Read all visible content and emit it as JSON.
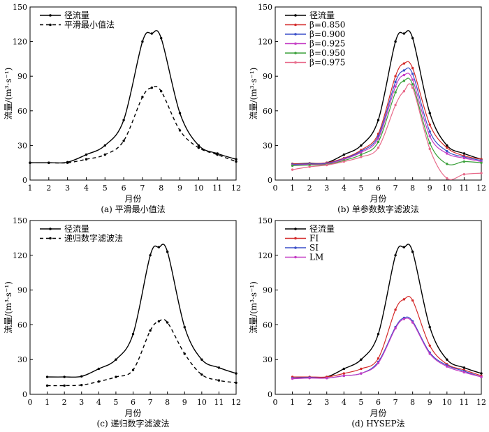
{
  "chart_data": [
    {
      "type": "line",
      "title": "",
      "caption": "(a) 平滑最小值法",
      "xlabel": "月份",
      "ylabel": "流量/(m³·s⁻¹)",
      "xlim": [
        1,
        12
      ],
      "ylim": [
        0,
        150
      ],
      "xticks": [
        1,
        2,
        3,
        4,
        5,
        6,
        7,
        8,
        9,
        10,
        11,
        12
      ],
      "yticks": [
        0,
        30,
        60,
        90,
        120,
        150
      ],
      "legend_position": "top-left",
      "grid": false,
      "series": [
        {
          "name": "径流量",
          "style": "solid",
          "color": "#000000",
          "x": [
            1,
            2,
            3,
            4,
            5,
            6,
            7,
            7.5,
            8,
            9,
            10,
            11,
            12
          ],
          "y": [
            15,
            15,
            15.5,
            22,
            30,
            52,
            120,
            127,
            123,
            58,
            30,
            23,
            18
          ]
        },
        {
          "name": "平滑最小值法",
          "style": "dashed",
          "color": "#000000",
          "x": [
            1,
            2,
            3,
            4,
            5,
            6,
            7,
            7.5,
            8,
            9,
            10,
            11,
            12
          ],
          "y": [
            15,
            15,
            15,
            18,
            22,
            34,
            72,
            80,
            77,
            43,
            28,
            22,
            16
          ]
        }
      ]
    },
    {
      "type": "line",
      "title": "",
      "caption": "(b) 单参数数字滤波法",
      "xlabel": "月份",
      "ylabel": "流量/(m³·s⁻¹)",
      "xlim": [
        0,
        12
      ],
      "ylim": [
        0,
        150
      ],
      "xticks": [
        0,
        1,
        2,
        3,
        4,
        5,
        6,
        7,
        8,
        9,
        10,
        11,
        12
      ],
      "yticks": [
        0,
        30,
        60,
        90,
        120,
        150
      ],
      "legend_position": "top-left",
      "grid": false,
      "series": [
        {
          "name": "径流量",
          "color": "#000000",
          "x": [
            1,
            2,
            3,
            4,
            5,
            6,
            7,
            7.5,
            8,
            9,
            10,
            11,
            12
          ],
          "y": [
            14,
            14.5,
            15,
            22,
            30,
            52,
            120,
            127,
            123,
            58,
            30,
            23,
            18
          ]
        },
        {
          "name": "β=0.850",
          "color": "#d42a2a",
          "x": [
            1,
            2,
            3,
            4,
            5,
            6,
            7,
            7.5,
            8,
            9,
            10,
            11,
            12
          ],
          "y": [
            14,
            14.3,
            15,
            19,
            26,
            40,
            90,
            101,
            97,
            48,
            28,
            21,
            18
          ]
        },
        {
          "name": "β=0.900",
          "color": "#3a4fc8",
          "x": [
            1,
            2,
            3,
            4,
            5,
            6,
            7,
            7.5,
            8,
            9,
            10,
            11,
            12
          ],
          "y": [
            13.5,
            14,
            14.5,
            18.5,
            25,
            38,
            85,
            95,
            92,
            42,
            25,
            20,
            17
          ]
        },
        {
          "name": "β=0.925",
          "color": "#c43ac4",
          "x": [
            1,
            2,
            3,
            4,
            5,
            6,
            7,
            7.5,
            8,
            9,
            10,
            11,
            12
          ],
          "y": [
            13,
            13.5,
            14,
            18,
            24,
            36,
            81,
            91,
            87,
            38,
            23,
            19,
            16
          ]
        },
        {
          "name": "β=0.950",
          "color": "#3aa03a",
          "x": [
            1,
            2,
            3,
            4,
            5,
            6,
            7,
            7.5,
            8,
            9,
            10,
            11,
            12
          ],
          "y": [
            12.5,
            13,
            13.5,
            17,
            22,
            33,
            76,
            86,
            83,
            32,
            14,
            16,
            15
          ]
        },
        {
          "name": "β=0.975",
          "color": "#e86a8a",
          "x": [
            1,
            2,
            3,
            4,
            5,
            6,
            7,
            7.5,
            8,
            9,
            10,
            11,
            12
          ],
          "y": [
            9,
            11.5,
            13,
            16,
            20,
            28,
            65,
            77,
            80,
            27,
            1.5,
            5,
            6
          ]
        }
      ]
    },
    {
      "type": "line",
      "title": "",
      "caption": "(c) 递归数字滤波法",
      "xlabel": "月份",
      "ylabel": "流量/(m³·s⁻¹)",
      "xlim": [
        0,
        12
      ],
      "ylim": [
        0,
        150
      ],
      "xticks": [
        0,
        1,
        2,
        3,
        4,
        5,
        6,
        7,
        8,
        9,
        10,
        11,
        12
      ],
      "yticks": [
        0,
        30,
        60,
        90,
        120,
        150
      ],
      "legend_position": "top-left",
      "grid": false,
      "series": [
        {
          "name": "径流量",
          "style": "solid",
          "color": "#000000",
          "x": [
            1,
            2,
            3,
            4,
            5,
            6,
            7,
            7.5,
            8,
            9,
            10,
            11,
            12
          ],
          "y": [
            15,
            15,
            15.5,
            22,
            30,
            52,
            120,
            127,
            123,
            58,
            30,
            23,
            18
          ]
        },
        {
          "name": "递归数字滤波法",
          "style": "dashed",
          "color": "#000000",
          "x": [
            1,
            2,
            3,
            4,
            5,
            6,
            7,
            7.5,
            8,
            9,
            10,
            11,
            12
          ],
          "y": [
            7.5,
            7.5,
            8,
            11,
            15,
            21,
            55,
            63,
            62,
            35,
            17,
            12,
            10
          ]
        }
      ]
    },
    {
      "type": "line",
      "title": "",
      "caption": "(d) HYSEP法",
      "xlabel": "月份",
      "ylabel": "流量/(m³·s⁻¹)",
      "xlim": [
        0,
        12
      ],
      "ylim": [
        0,
        150
      ],
      "xticks": [
        0,
        1,
        2,
        3,
        4,
        5,
        6,
        7,
        8,
        9,
        10,
        11,
        12
      ],
      "yticks": [
        0,
        30,
        60,
        90,
        120,
        150
      ],
      "legend_position": "top-left",
      "grid": false,
      "series": [
        {
          "name": "径流量",
          "color": "#000000",
          "x": [
            1,
            2,
            3,
            4,
            5,
            6,
            7,
            7.5,
            8,
            9,
            10,
            11,
            12
          ],
          "y": [
            14,
            14.5,
            15,
            22,
            30,
            52,
            120,
            127,
            123,
            58,
            30,
            23,
            18
          ]
        },
        {
          "name": "FI",
          "color": "#d42a2a",
          "x": [
            1,
            2,
            3,
            4,
            5,
            6,
            7,
            7.5,
            8,
            9,
            10,
            11,
            12
          ],
          "y": [
            15,
            15,
            15,
            18,
            22,
            31,
            73,
            82,
            81,
            42,
            26,
            21,
            16
          ]
        },
        {
          "name": "SI",
          "color": "#3a4fc8",
          "x": [
            1,
            2,
            3,
            4,
            5,
            6,
            7,
            7.5,
            8,
            9,
            10,
            11,
            12
          ],
          "y": [
            14,
            14.5,
            14,
            16,
            18,
            28,
            58,
            66,
            63,
            36,
            25,
            20,
            15
          ]
        },
        {
          "name": "LM",
          "color": "#c43ac4",
          "x": [
            1,
            2,
            3,
            4,
            5,
            6,
            7,
            7.5,
            8,
            9,
            10,
            11,
            12
          ],
          "y": [
            13.5,
            14,
            14,
            16,
            18,
            27,
            57,
            65,
            62,
            35,
            24,
            19,
            15
          ]
        }
      ]
    }
  ]
}
